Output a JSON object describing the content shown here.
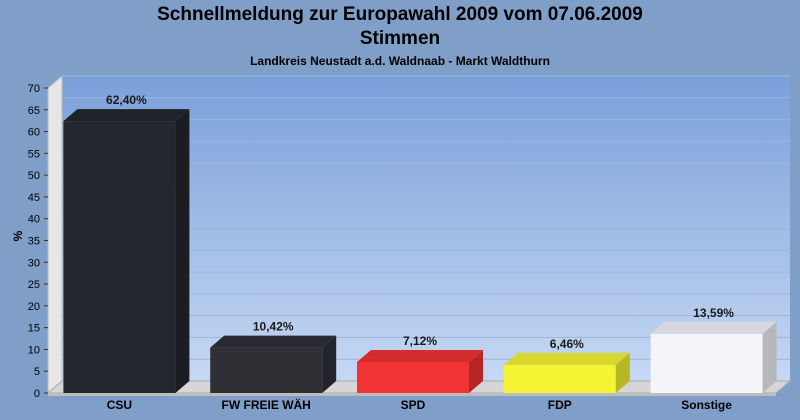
{
  "chart_data": {
    "type": "bar",
    "title": "Schnellmeldung zur Europawahl 2009 vom 07.06.2009",
    "subtitle": "Stimmen",
    "caption": "Landkreis Neustadt a.d. Waldnaab - Markt Waldthurn",
    "ylabel": "%",
    "xlabel": "",
    "ylim": [
      0,
      70
    ],
    "yticks": [
      0,
      5,
      10,
      15,
      20,
      25,
      30,
      35,
      40,
      45,
      50,
      55,
      60,
      65,
      70
    ],
    "grid": true,
    "categories": [
      "CSU",
      "FW FREIE WÄH",
      "SPD",
      "FDP",
      "Sonstige"
    ],
    "values": [
      62.4,
      10.42,
      7.12,
      6.46,
      13.59
    ],
    "value_labels": [
      "62,40%",
      "10,42%",
      "7,12%",
      "6,46%",
      "13,59%"
    ],
    "colors": [
      "#24272f",
      "#2f3036",
      "#f23333",
      "#f4f433",
      "#f3f5fb"
    ]
  }
}
